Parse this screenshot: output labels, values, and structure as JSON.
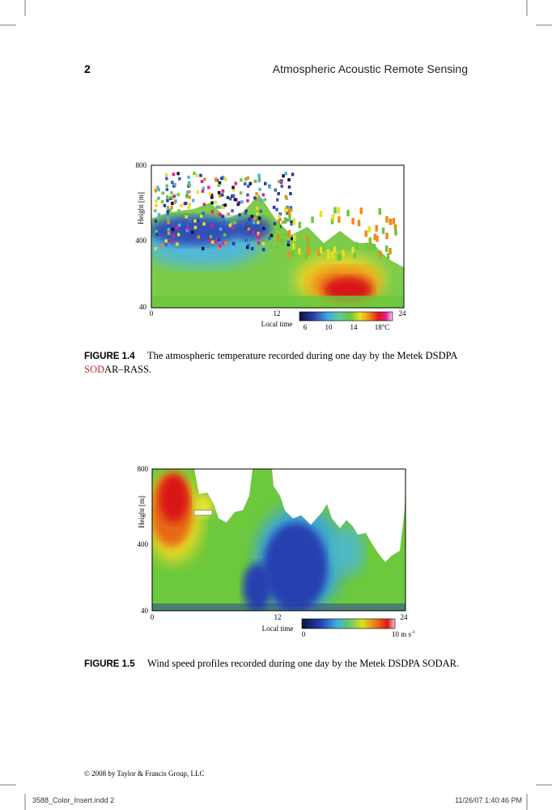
{
  "header": {
    "page_number": "2",
    "running_title": "Atmospheric Acoustic Remote Sensing"
  },
  "figures": [
    {
      "y_axis_label": "Height [m]",
      "y_ticks": [
        "800",
        "400",
        "40"
      ],
      "x_ticks": [
        "0",
        "12",
        "24"
      ],
      "x_axis_label": "Local time",
      "colorbar_ticks": [
        "6",
        "10",
        "14",
        "18°C"
      ],
      "caption_label": "FIGURE 1.4",
      "caption_parts": [
        "The atmospheric temperature recorded during one day by the Metek DSDPA",
        "SOD",
        "AR–RASS."
      ]
    },
    {
      "y_axis_label": "Height [m]",
      "y_ticks": [
        "800",
        "400",
        "40"
      ],
      "x_ticks": [
        "0",
        "12",
        "24"
      ],
      "x_axis_label": "Local time",
      "colorbar_ticks": [
        "0",
        "10 m s"
      ],
      "colorbar_unit_exponent": "-1",
      "caption_label": "FIGURE 1.5",
      "caption_text": "Wind speed profiles recorded during one day by the Metek DSDPA SODAR."
    }
  ],
  "footer": {
    "copyright": "© 2008 by Taylor & Francis Group, LLC",
    "slug_file": "3588_Color_Insert.indd   2",
    "slug_time": "11/26/07   1:40:46 PM"
  }
}
